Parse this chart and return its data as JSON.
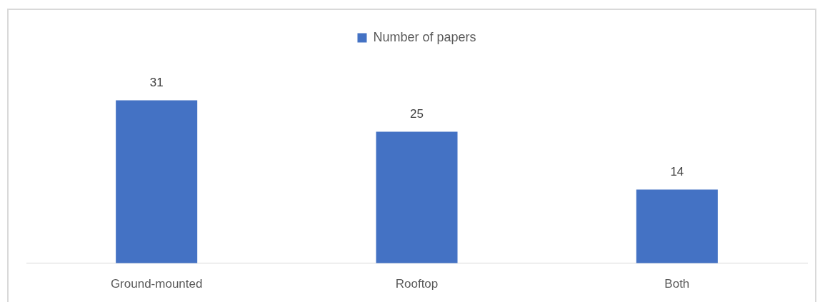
{
  "chart_data": {
    "type": "bar",
    "categories": [
      "Ground-mounted",
      "Rooftop",
      "Both"
    ],
    "series": [
      {
        "name": "Number of papers",
        "color": "#4472c4",
        "values": [
          31,
          25,
          14
        ]
      }
    ],
    "legend": "top",
    "data_labels": true,
    "tick_labels": "x"
  }
}
